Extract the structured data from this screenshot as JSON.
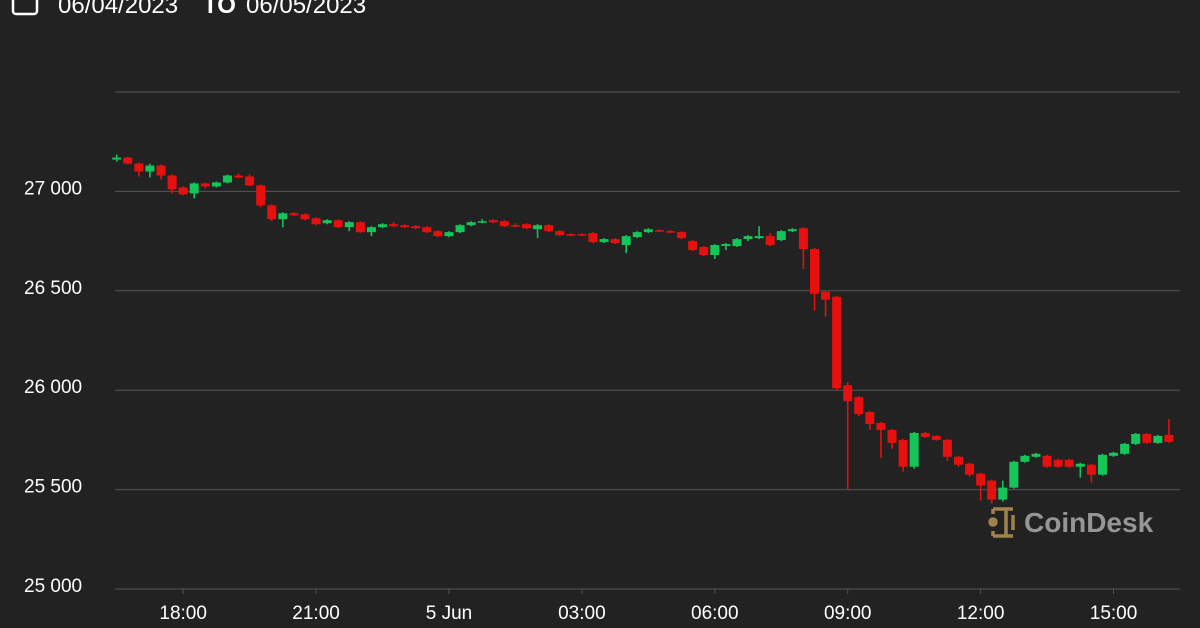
{
  "chart_data": {
    "type": "candlestick",
    "date_from": "06/04/2023",
    "range_separator": "TO",
    "date_to": "06/05/2023",
    "watermark": "CoinDesk",
    "up_color": "#16c55a",
    "down_color": "#e8100f",
    "grid": true,
    "ylim": [
      25000,
      27500
    ],
    "yticks": [
      {
        "value": 25000,
        "label": "25 000"
      },
      {
        "value": 25500,
        "label": "25 500"
      },
      {
        "value": 26000,
        "label": "26 000"
      },
      {
        "value": 26500,
        "label": "26 500"
      },
      {
        "value": 27000,
        "label": "27 000"
      }
    ],
    "xlim": [
      "2023-06-04 16:25",
      "2023-06-05 16:30"
    ],
    "xticks": [
      {
        "value": "2023-06-04 18:00",
        "label": "18:00"
      },
      {
        "value": "2023-06-04 21:00",
        "label": "21:00"
      },
      {
        "value": "2023-06-05 00:00",
        "label": "5 Jun"
      },
      {
        "value": "2023-06-05 03:00",
        "label": "03:00"
      },
      {
        "value": "2023-06-05 06:00",
        "label": "06:00"
      },
      {
        "value": "2023-06-05 09:00",
        "label": "09:00"
      },
      {
        "value": "2023-06-05 12:00",
        "label": "12:00"
      },
      {
        "value": "2023-06-05 15:00",
        "label": "15:00"
      }
    ],
    "x": [
      "2023-06-04 16:30",
      "2023-06-04 16:45",
      "2023-06-04 17:00",
      "2023-06-04 17:15",
      "2023-06-04 17:30",
      "2023-06-04 17:45",
      "2023-06-04 18:00",
      "2023-06-04 18:15",
      "2023-06-04 18:30",
      "2023-06-04 18:45",
      "2023-06-04 19:00",
      "2023-06-04 19:15",
      "2023-06-04 19:30",
      "2023-06-04 19:45",
      "2023-06-04 20:00",
      "2023-06-04 20:15",
      "2023-06-04 20:30",
      "2023-06-04 20:45",
      "2023-06-04 21:00",
      "2023-06-04 21:15",
      "2023-06-04 21:30",
      "2023-06-04 21:45",
      "2023-06-04 22:00",
      "2023-06-04 22:15",
      "2023-06-04 22:30",
      "2023-06-04 22:45",
      "2023-06-04 23:00",
      "2023-06-04 23:15",
      "2023-06-04 23:30",
      "2023-06-04 23:45",
      "2023-06-05 00:00",
      "2023-06-05 00:15",
      "2023-06-05 00:30",
      "2023-06-05 00:45",
      "2023-06-05 01:00",
      "2023-06-05 01:15",
      "2023-06-05 01:30",
      "2023-06-05 01:45",
      "2023-06-05 02:00",
      "2023-06-05 02:15",
      "2023-06-05 02:30",
      "2023-06-05 02:45",
      "2023-06-05 03:00",
      "2023-06-05 03:15",
      "2023-06-05 03:30",
      "2023-06-05 03:45",
      "2023-06-05 04:00",
      "2023-06-05 04:15",
      "2023-06-05 04:30",
      "2023-06-05 04:45",
      "2023-06-05 05:00",
      "2023-06-05 05:15",
      "2023-06-05 05:30",
      "2023-06-05 05:45",
      "2023-06-05 06:00",
      "2023-06-05 06:15",
      "2023-06-05 06:30",
      "2023-06-05 06:45",
      "2023-06-05 07:00",
      "2023-06-05 07:15",
      "2023-06-05 07:30",
      "2023-06-05 07:45",
      "2023-06-05 08:00",
      "2023-06-05 08:15",
      "2023-06-05 08:30",
      "2023-06-05 08:45",
      "2023-06-05 09:00",
      "2023-06-05 09:15",
      "2023-06-05 09:30",
      "2023-06-05 09:45",
      "2023-06-05 10:00",
      "2023-06-05 10:15",
      "2023-06-05 10:30",
      "2023-06-05 10:45",
      "2023-06-05 11:00",
      "2023-06-05 11:15",
      "2023-06-05 11:30",
      "2023-06-05 11:45",
      "2023-06-05 12:00",
      "2023-06-05 12:15",
      "2023-06-05 12:30",
      "2023-06-05 12:45",
      "2023-06-05 13:00",
      "2023-06-05 13:15",
      "2023-06-05 13:30",
      "2023-06-05 13:45",
      "2023-06-05 14:00",
      "2023-06-05 14:15",
      "2023-06-05 14:30",
      "2023-06-05 14:45",
      "2023-06-05 15:00",
      "2023-06-05 15:15",
      "2023-06-05 15:30",
      "2023-06-05 15:45",
      "2023-06-05 16:00",
      "2023-06-05 16:15"
    ],
    "open": [
      27160,
      27170,
      27140,
      27100,
      27130,
      27080,
      27020,
      26990,
      27040,
      27025,
      27045,
      27080,
      27075,
      27030,
      26930,
      26860,
      26890,
      26885,
      26865,
      26840,
      26855,
      26820,
      26845,
      26795,
      26820,
      26835,
      26830,
      26825,
      26820,
      26800,
      26775,
      26795,
      26830,
      26845,
      26855,
      26850,
      26830,
      26835,
      26810,
      26830,
      26800,
      26785,
      26785,
      26790,
      26745,
      26760,
      26730,
      26770,
      26795,
      26805,
      26800,
      26795,
      26750,
      26720,
      26680,
      26725,
      26725,
      26760,
      26765,
      26775,
      26755,
      26800,
      26815,
      26710,
      26495,
      26470,
      26025,
      25965,
      25890,
      25835,
      25800,
      25750,
      25615,
      25785,
      25770,
      25750,
      25665,
      25630,
      25580,
      25545,
      25450,
      25510,
      25640,
      25665,
      25670,
      25650,
      25650,
      25615,
      25625,
      25575,
      25670,
      25680,
      25730,
      25780,
      25735,
      25775
    ],
    "high": [
      27185,
      27175,
      27145,
      27140,
      27135,
      27085,
      27025,
      27045,
      27045,
      27050,
      27085,
      27090,
      27085,
      27035,
      26935,
      26895,
      26895,
      26890,
      26870,
      26860,
      26860,
      26850,
      26850,
      26825,
      26840,
      26845,
      26835,
      26830,
      26825,
      26805,
      26800,
      26835,
      26850,
      26860,
      26860,
      26855,
      26840,
      26840,
      26835,
      26835,
      26805,
      26790,
      26790,
      26795,
      26765,
      26765,
      26780,
      26800,
      26815,
      26810,
      26805,
      26800,
      26755,
      26725,
      26735,
      26740,
      26765,
      26780,
      26825,
      26790,
      26805,
      26815,
      26820,
      26715,
      26500,
      26475,
      26040,
      25970,
      25895,
      25840,
      25805,
      25755,
      25790,
      25790,
      25775,
      25755,
      25670,
      25635,
      25585,
      25550,
      25545,
      25645,
      25675,
      25685,
      25675,
      25655,
      25655,
      25635,
      25630,
      25680,
      25690,
      25735,
      25785,
      25785,
      25775,
      25855
    ],
    "low": [
      27150,
      27135,
      27075,
      27070,
      27060,
      26990,
      26980,
      26965,
      27015,
      27020,
      27040,
      27065,
      27025,
      26920,
      26850,
      26820,
      26875,
      26855,
      26830,
      26835,
      26815,
      26800,
      26790,
      26775,
      26815,
      26820,
      26815,
      26810,
      26790,
      26770,
      26770,
      26790,
      26825,
      26840,
      26840,
      26820,
      26820,
      26810,
      26765,
      26795,
      26775,
      26775,
      26775,
      26740,
      26740,
      26735,
      26690,
      26765,
      26790,
      26795,
      26790,
      26760,
      26700,
      26675,
      26660,
      26705,
      26720,
      26750,
      26760,
      26725,
      26750,
      26795,
      26610,
      26400,
      26370,
      26000,
      25500,
      25870,
      25800,
      25660,
      25705,
      25590,
      25605,
      25760,
      25745,
      25645,
      25615,
      25565,
      25445,
      25430,
      25440,
      25505,
      25635,
      25660,
      25610,
      25610,
      25610,
      25560,
      25535,
      25570,
      25665,
      25675,
      25725,
      25730,
      25730,
      25735
    ],
    "close": [
      27170,
      27140,
      27100,
      27130,
      27080,
      27010,
      26985,
      27040,
      27025,
      27045,
      27080,
      27070,
      27030,
      26930,
      26860,
      26890,
      26880,
      26860,
      26835,
      26855,
      26820,
      26845,
      26795,
      26820,
      26835,
      26825,
      26820,
      26815,
      26795,
      26775,
      26795,
      26830,
      26845,
      26850,
      26845,
      26825,
      26825,
      26815,
      26830,
      26800,
      26780,
      26780,
      26780,
      26745,
      26760,
      26740,
      26775,
      26795,
      26810,
      26800,
      26795,
      26765,
      26705,
      26680,
      26730,
      26735,
      26760,
      26775,
      26775,
      26730,
      26800,
      26810,
      26710,
      26485,
      26455,
      26010,
      25945,
      25880,
      25830,
      25800,
      25735,
      25615,
      25785,
      25765,
      25750,
      25665,
      25625,
      25575,
      25520,
      25450,
      25510,
      25640,
      25670,
      25680,
      25615,
      25615,
      25615,
      25630,
      25575,
      25675,
      25685,
      25730,
      25780,
      25735,
      25770,
      25740
    ]
  }
}
